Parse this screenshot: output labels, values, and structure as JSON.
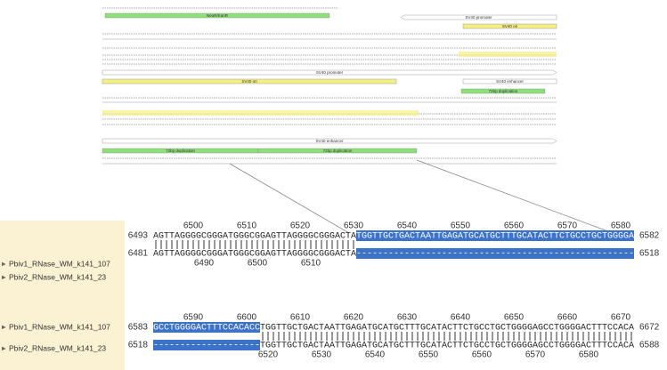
{
  "map_features": [
    {
      "label": "NeoR/KanR",
      "color": "#8ee07a"
    },
    {
      "label": "SV40 promoter",
      "color": "#ffffff"
    },
    {
      "label": "SV40 ori",
      "color": "#f4ee84"
    },
    {
      "label": "SV40 promoter",
      "color": "#ffffff"
    },
    {
      "label": "SV40 ori",
      "color": "#f4ee84"
    },
    {
      "label": "SV40 enhancer",
      "color": "#ffffff"
    },
    {
      "label": "72bp duplication",
      "color": "#8ee07a"
    },
    {
      "label": "SV40 enhancer",
      "color": "#ffffff"
    },
    {
      "label": "72bp duplication",
      "color": "#8ee07a"
    },
    {
      "label": "72bp duplication",
      "color": "#8ee07a"
    }
  ],
  "alignment": {
    "blocks": [
      {
        "top_ruler": [
          6500,
          6510,
          6520,
          6530,
          6540,
          6550,
          6560,
          6570,
          6580
        ],
        "rows": [
          {
            "name": "Pbiv1_RNase_WM_k141_107",
            "start": 6493,
            "end": 6582,
            "segments": [
              {
                "text": "AGTTAGGGGCGGGATGGGCGGAGTTAGGGGCGGGACTA",
                "highlight": false
              },
              {
                "text": "TGGTTGCTGACTAATTGAGATGCATGCTTTGCATACTTCTGCCTGCTGGGGA",
                "highlight": true
              }
            ]
          },
          {
            "name": "Pbiv2_RNase_WM_k141_23",
            "start": 6481,
            "end": 6518,
            "segments": [
              {
                "text": "AGTTAGGGGCGGGATGGGCGGAGTTAGGGGCGGGACTA",
                "highlight": false
              },
              {
                "text": "----------------------------------------------------",
                "highlight": true
              }
            ]
          }
        ],
        "bottom_ruler": [
          6490,
          6500,
          6510
        ]
      },
      {
        "top_ruler": [
          6590,
          6600,
          6610,
          6620,
          6630,
          6640,
          6650,
          6660,
          6670
        ],
        "rows": [
          {
            "name": "Pbiv1_RNase_WM_k141_107",
            "start": 6583,
            "end": 6672,
            "segments": [
              {
                "text": "GCCTGGGGACTTTCCACACC",
                "highlight": true
              },
              {
                "text": "TGGTTGCTGACTAATTGAGATGCATGCTTTGCATACTTCTGCCTGCTGGGGAGCCTGGGGACTTTCCACA",
                "highlight": false
              }
            ]
          },
          {
            "name": "Pbiv2_RNase_WM_k141_23",
            "start": 6518,
            "end": 6588,
            "segments": [
              {
                "text": "--------------------",
                "highlight": true
              },
              {
                "text": "TGGTTGCTGACTAATTGAGATGCATGCTTTGCATACTTCTGCCTGCTGGGGAGCCTGGGGACTTTCCACA",
                "highlight": false
              }
            ]
          }
        ],
        "bottom_ruler": [
          6520,
          6530,
          6540,
          6550,
          6560,
          6570,
          6580
        ]
      }
    ]
  }
}
